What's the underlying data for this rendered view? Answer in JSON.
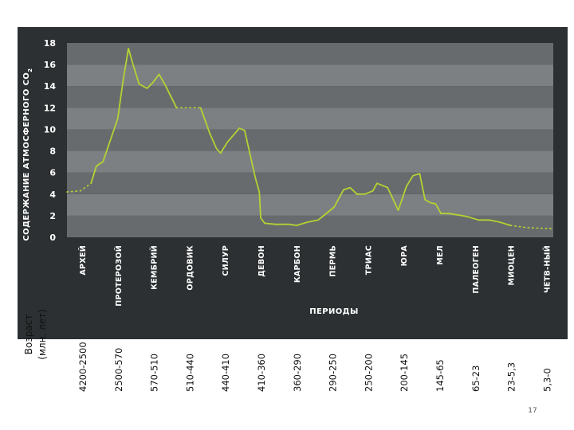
{
  "chart_data": {
    "type": "line",
    "ylabel": "СОДЕРЖАНИЕ АТМОСФЕРНОГО CO",
    "ylabel_subscript": "2",
    "xlabel": "ПЕРИОДЫ",
    "ylim": [
      0,
      18
    ],
    "yticks": [
      "0",
      "2",
      "4",
      "6",
      "8",
      "10",
      "12",
      "14",
      "16",
      "18"
    ],
    "grid": "alternating horizontal bands",
    "categories": [
      "АРХЕЙ",
      "ПРОТЕРОЗОЙ",
      "КЕМБРИЙ",
      "ОРДОВИК",
      "СИЛУР",
      "ДЕВОН",
      "КАРБОН",
      "ПЕРМЬ",
      "ТРИАС",
      "ЮРА",
      "МЕЛ",
      "ПАЛЕОГЕН",
      "МИОЦЕН",
      "ЧЕТВ-НЫЙ"
    ],
    "ages": [
      "4200-2500",
      "2500-570",
      "570-510",
      "510-440",
      "440-410",
      "410-360",
      "360-290",
      "290-250",
      "250-200",
      "200-145",
      "145-65",
      "65-23",
      "23-5,3",
      "5,3-0"
    ],
    "ages_title_line1": "Возраст",
    "ages_title_line2": "(млн. лет)",
    "line_color": "#b4d233",
    "series": [
      {
        "style": "dotted",
        "points": [
          [
            0.0,
            4.2
          ],
          [
            0.5,
            4.3
          ],
          [
            0.9,
            5.0
          ]
        ]
      },
      {
        "style": "solid",
        "points": [
          [
            0.9,
            5.0
          ],
          [
            1.1,
            6.6
          ],
          [
            1.35,
            7.0
          ],
          [
            1.9,
            11.0
          ],
          [
            2.1,
            14.5
          ],
          [
            2.3,
            17.5
          ],
          [
            2.45,
            16.2
          ],
          [
            2.7,
            14.2
          ],
          [
            3.0,
            13.8
          ],
          [
            3.2,
            14.3
          ],
          [
            3.45,
            15.1
          ],
          [
            3.7,
            14.0
          ],
          [
            3.9,
            13.0
          ],
          [
            4.1,
            12.0
          ]
        ]
      },
      {
        "style": "dotted",
        "points": [
          [
            4.1,
            12.0
          ],
          [
            4.6,
            12.0
          ],
          [
            5.0,
            12.0
          ]
        ]
      },
      {
        "style": "solid",
        "points": [
          [
            5.0,
            12.0
          ],
          [
            5.35,
            9.6
          ],
          [
            5.6,
            8.2
          ],
          [
            5.75,
            7.8
          ],
          [
            6.0,
            8.8
          ],
          [
            6.45,
            10.1
          ],
          [
            6.65,
            9.9
          ],
          [
            7.05,
            5.5
          ],
          [
            7.2,
            4.2
          ],
          [
            7.25,
            1.8
          ],
          [
            7.4,
            1.3
          ],
          [
            7.8,
            1.2
          ],
          [
            8.3,
            1.2
          ],
          [
            8.6,
            1.1
          ],
          [
            9.0,
            1.4
          ],
          [
            9.4,
            1.6
          ],
          [
            10.0,
            2.8
          ],
          [
            10.35,
            4.4
          ],
          [
            10.6,
            4.6
          ],
          [
            10.85,
            4.0
          ],
          [
            11.15,
            4.0
          ],
          [
            11.45,
            4.3
          ],
          [
            11.6,
            5.0
          ],
          [
            12.0,
            4.6
          ],
          [
            12.4,
            2.5
          ],
          [
            12.7,
            4.7
          ],
          [
            12.95,
            5.7
          ],
          [
            13.2,
            5.9
          ],
          [
            13.4,
            3.5
          ],
          [
            13.6,
            3.2
          ],
          [
            13.8,
            3.1
          ],
          [
            14.0,
            2.2
          ],
          [
            14.3,
            2.2
          ],
          [
            14.8,
            2.0
          ],
          [
            15.0,
            1.9
          ],
          [
            15.4,
            1.6
          ],
          [
            15.8,
            1.6
          ],
          [
            16.2,
            1.4
          ],
          [
            16.6,
            1.1
          ]
        ]
      },
      {
        "style": "dotted",
        "points": [
          [
            16.6,
            1.1
          ],
          [
            17.2,
            0.9
          ],
          [
            18.2,
            0.8
          ]
        ]
      }
    ]
  },
  "page": {
    "number": "17"
  }
}
